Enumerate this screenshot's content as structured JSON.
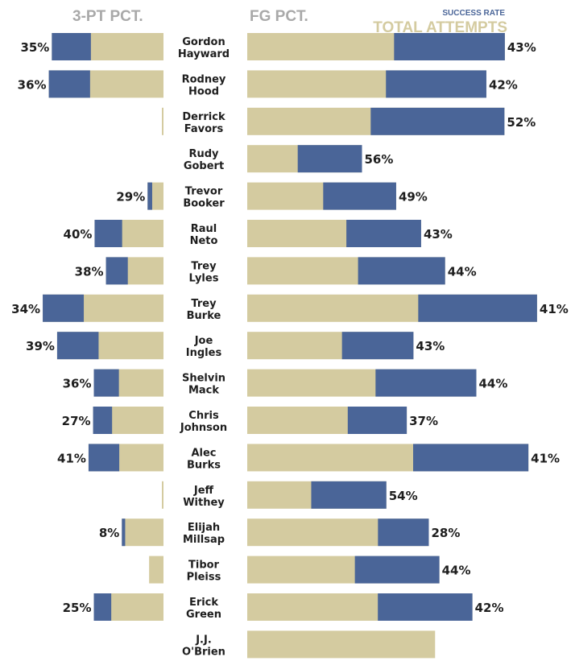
{
  "chart_data": {
    "type": "bar",
    "headings": {
      "left": "3-PT PCT.",
      "right": "FG PCT."
    },
    "legend": {
      "success": "SUCCESS RATE",
      "total": "TOTAL ATTEMPTS"
    },
    "colors": {
      "attempts": "#d4cba0",
      "success": "#4a6598",
      "heading": "#a9a9a9",
      "text": "#1e1e1e"
    },
    "players": [
      {
        "first": "Gordon",
        "last": "Hayward",
        "tp_att": 295,
        "tp_pct": 35,
        "tp_label": "35%",
        "fg_att": 1311,
        "fg_pct": 43,
        "fg_label": "43%"
      },
      {
        "first": "Rodney",
        "last": "Hood",
        "tp_att": 303,
        "tp_pct": 36,
        "tp_label": "36%",
        "fg_att": 1217,
        "fg_pct": 42,
        "fg_label": "42%"
      },
      {
        "first": "Derrick",
        "last": "Favors",
        "tp_att": 3,
        "tp_pct": null,
        "tp_label": "",
        "fg_att": 1309,
        "fg_pct": 52,
        "fg_label": "52%"
      },
      {
        "first": "Rudy",
        "last": "Gobert",
        "tp_att": 0,
        "tp_pct": null,
        "tp_label": "",
        "fg_att": 584,
        "fg_pct": 56,
        "fg_label": "56%"
      },
      {
        "first": "Trevor",
        "last": "Booker",
        "tp_att": 42,
        "tp_pct": 29,
        "tp_label": "29%",
        "fg_att": 758,
        "fg_pct": 49,
        "fg_label": "49%"
      },
      {
        "first": "Raul",
        "last": "Neto",
        "tp_att": 182,
        "tp_pct": 40,
        "tp_label": "40%",
        "fg_att": 885,
        "fg_pct": 43,
        "fg_label": "43%"
      },
      {
        "first": "Trey",
        "last": "Lyles",
        "tp_att": 152,
        "tp_pct": 38,
        "tp_label": "38%",
        "fg_att": 1007,
        "fg_pct": 44,
        "fg_label": "44%"
      },
      {
        "first": "Trey",
        "last": "Burke",
        "tp_att": 319,
        "tp_pct": 34,
        "tp_label": "34%",
        "fg_att": 1475,
        "fg_pct": 41,
        "fg_label": "41%"
      },
      {
        "first": "Joe",
        "last": "Ingles",
        "tp_att": 281,
        "tp_pct": 39,
        "tp_label": "39%",
        "fg_att": 846,
        "fg_pct": 43,
        "fg_label": "43%"
      },
      {
        "first": "Shelvin",
        "last": "Mack",
        "tp_att": 184,
        "tp_pct": 36,
        "tp_label": "36%",
        "fg_att": 1166,
        "fg_pct": 44,
        "fg_label": "44%"
      },
      {
        "first": "Chris",
        "last": "Johnson",
        "tp_att": 186,
        "tp_pct": 27,
        "tp_label": "27%",
        "fg_att": 812,
        "fg_pct": 37,
        "fg_label": "37%"
      },
      {
        "first": "Alec",
        "last": "Burks",
        "tp_att": 198,
        "tp_pct": 41,
        "tp_label": "41%",
        "fg_att": 1431,
        "fg_pct": 41,
        "fg_label": "41%"
      },
      {
        "first": "Jeff",
        "last": "Withey",
        "tp_att": 2,
        "tp_pct": null,
        "tp_label": "",
        "fg_att": 708,
        "fg_pct": 54,
        "fg_label": "54%"
      },
      {
        "first": "Elijah",
        "last": "Millsap",
        "tp_att": 110,
        "tp_pct": 8,
        "tp_label": "8%",
        "fg_att": 924,
        "fg_pct": 28,
        "fg_label": "28%"
      },
      {
        "first": "Tibor",
        "last": "Pleiss",
        "tp_att": 38,
        "tp_pct": 0,
        "tp_label": "",
        "fg_att": 978,
        "fg_pct": 44,
        "fg_label": "44%"
      },
      {
        "first": "Erick",
        "last": "Green",
        "tp_att": 184,
        "tp_pct": 25,
        "tp_label": "25%",
        "fg_att": 1146,
        "fg_pct": 42,
        "fg_label": "42%"
      },
      {
        "first": "J.J.",
        "last": "O'Brien",
        "tp_att": 0,
        "tp_pct": null,
        "tp_label": "",
        "fg_att": 956,
        "fg_pct": 0,
        "fg_label": ""
      }
    ]
  }
}
